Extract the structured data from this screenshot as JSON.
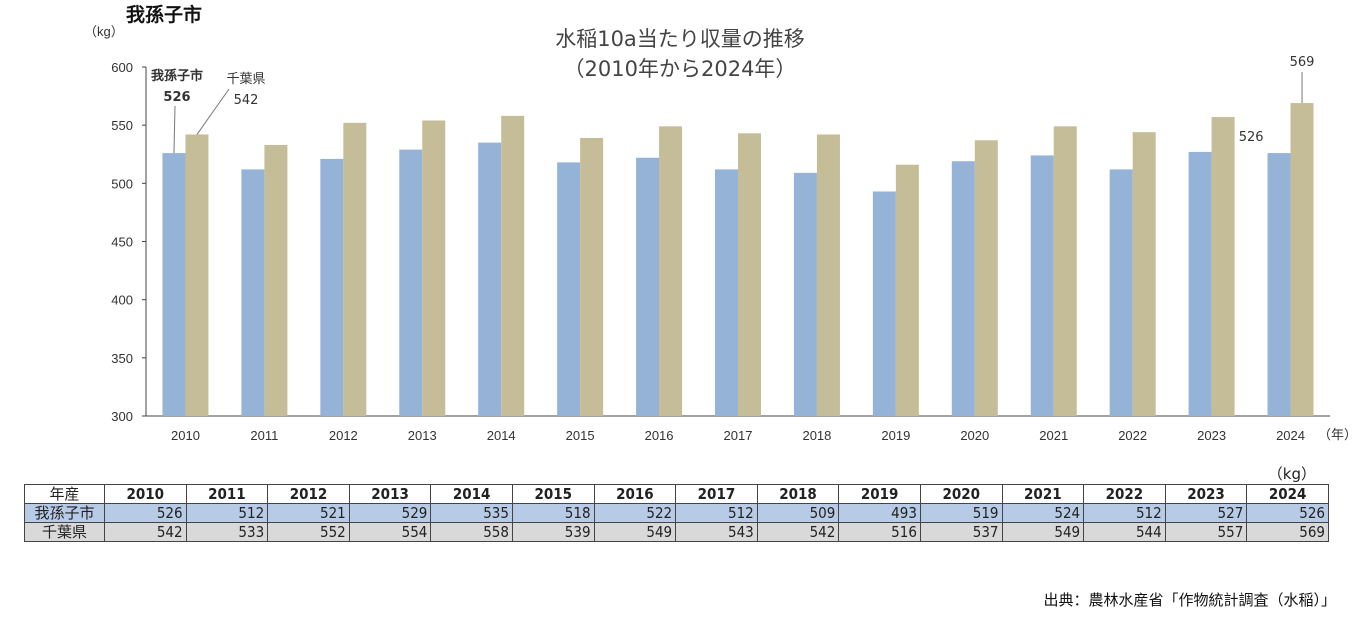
{
  "region_label": "我孫子市",
  "chart_data": {
    "type": "bar",
    "title": "水稲10a当たり収量の推移",
    "subtitle": "（2010年から2024年）",
    "ylabel": "（kg）",
    "xlabel": "（年）",
    "ylim": [
      300,
      600
    ],
    "yticks": [
      300,
      350,
      400,
      450,
      500,
      550,
      600
    ],
    "categories": [
      "2010",
      "2011",
      "2012",
      "2013",
      "2014",
      "2015",
      "2016",
      "2017",
      "2018",
      "2019",
      "2020",
      "2021",
      "2022",
      "2023",
      "2024"
    ],
    "series": [
      {
        "name": "我孫子市",
        "color": "#95b3d7",
        "values": [
          526,
          512,
          521,
          529,
          535,
          518,
          522,
          512,
          509,
          493,
          519,
          524,
          512,
          527,
          526
        ]
      },
      {
        "name": "千葉県",
        "color": "#c4bd97",
        "values": [
          542,
          533,
          552,
          554,
          558,
          539,
          549,
          543,
          542,
          516,
          537,
          549,
          544,
          557,
          569
        ]
      }
    ],
    "annotations": {
      "first": {
        "city_name": "我孫子市",
        "city_value": "526",
        "pref_name": "千葉県",
        "pref_value": "542"
      },
      "last": {
        "city_value": "526",
        "pref_value": "569"
      }
    },
    "grid": false
  },
  "table": {
    "unit": "（kg）",
    "header_label": "年産",
    "rows": [
      {
        "label": "我孫子市",
        "values": [
          526,
          512,
          521,
          529,
          535,
          518,
          522,
          512,
          509,
          493,
          519,
          524,
          512,
          527,
          526
        ]
      },
      {
        "label": "千葉県",
        "values": [
          542,
          533,
          552,
          554,
          558,
          539,
          549,
          543,
          542,
          516,
          537,
          549,
          544,
          557,
          569
        ]
      }
    ]
  },
  "source": "出典：農林水産省「作物統計調査（水稲）」"
}
